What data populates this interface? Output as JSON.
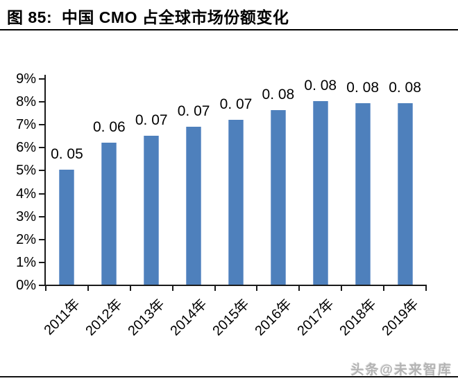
{
  "header": {
    "title": "图 85:  中国 CMO 占全球市场份额变化"
  },
  "footer": {
    "watermark": "头条@未来智库"
  },
  "chart_data": {
    "type": "bar",
    "title": "中国 CMO 占全球市场份额变化",
    "categories": [
      "2011年",
      "2012年",
      "2013年",
      "2014年",
      "2015年",
      "2016年",
      "2017年",
      "2018年",
      "2019年"
    ],
    "values": [
      5.0,
      6.2,
      6.5,
      6.9,
      7.2,
      7.6,
      8.0,
      7.9,
      7.9
    ],
    "value_unit": "%",
    "data_labels": [
      "0. 05",
      "0. 06",
      "0. 07",
      "0. 07",
      "0. 07",
      "0. 08",
      "0. 08",
      "0. 08",
      "0. 08"
    ],
    "ylim": [
      0,
      9
    ],
    "ytick_step": 1,
    "ytick_labels": [
      "0%",
      "1%",
      "2%",
      "3%",
      "4%",
      "5%",
      "6%",
      "7%",
      "8%",
      "9%"
    ],
    "xlabel": "",
    "ylabel": "",
    "grid": false,
    "legend_position": "none",
    "bar_color": "#4E80BC",
    "axis_color": "#1a1a1a"
  }
}
